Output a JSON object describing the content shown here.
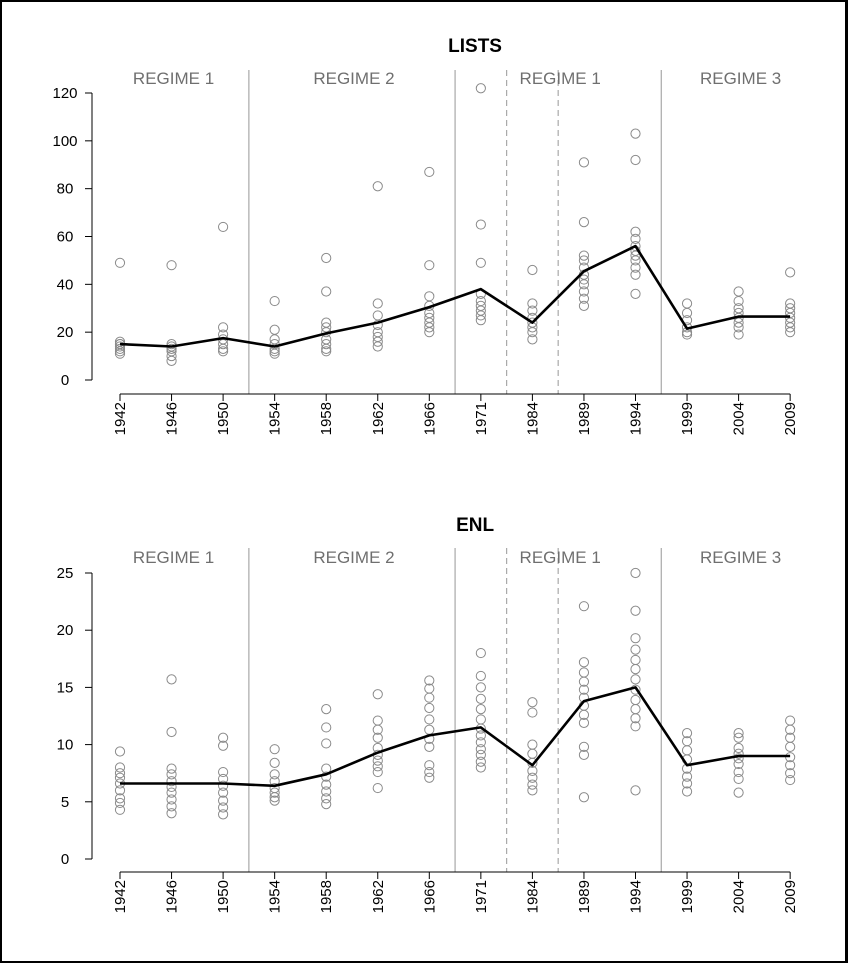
{
  "chart_data": [
    {
      "type": "scatter",
      "title": "LISTS",
      "xlabel": "",
      "ylabel": "",
      "categories": [
        "1942",
        "1946",
        "1950",
        "1954",
        "1958",
        "1962",
        "1966",
        "1971",
        "1984",
        "1989",
        "1994",
        "1999",
        "2004",
        "2009"
      ],
      "ylim": [
        0,
        120
      ],
      "yticks": [
        0,
        20,
        40,
        60,
        80,
        100,
        120
      ],
      "grid": false,
      "regimes": [
        {
          "label": "REGIME 1",
          "from": "1942",
          "to": "1950"
        },
        {
          "label": "REGIME 2",
          "from": "1954",
          "to": "1966"
        },
        {
          "label": "REGIME 1",
          "from": "1971",
          "to": "1994"
        },
        {
          "label": "REGIME 3",
          "from": "1999",
          "to": "2009"
        }
      ],
      "solid_dividers_after": [
        "1950",
        "1966",
        "1994"
      ],
      "dashed_dividers_after": [
        "1971",
        "1984"
      ],
      "points": [
        [
          11,
          12,
          13,
          14,
          15,
          15,
          16,
          49
        ],
        [
          8,
          10,
          12,
          13,
          14,
          15,
          48
        ],
        [
          12,
          13,
          15,
          17,
          19,
          22,
          64
        ],
        [
          11,
          12,
          13,
          15,
          17,
          21,
          33
        ],
        [
          12,
          13,
          15,
          17,
          20,
          22,
          24,
          37,
          51
        ],
        [
          14,
          16,
          18,
          20,
          23,
          27,
          32,
          81
        ],
        [
          20,
          22,
          24,
          26,
          28,
          31,
          35,
          48,
          87
        ],
        [
          25,
          27,
          29,
          31,
          33,
          36,
          49,
          65,
          122
        ],
        [
          17,
          20,
          22,
          24,
          26,
          29,
          32,
          46
        ],
        [
          31,
          34,
          37,
          40,
          42,
          44,
          47,
          50,
          52,
          66,
          91
        ],
        [
          36,
          44,
          47,
          50,
          52,
          54,
          56,
          59,
          62,
          92,
          103
        ],
        [
          19,
          20,
          22,
          25,
          28,
          32
        ],
        [
          19,
          22,
          24,
          26,
          28,
          30,
          33,
          37
        ],
        [
          20,
          22,
          24,
          26,
          28,
          30,
          32,
          45
        ]
      ],
      "mean_line": [
        15,
        14,
        17.5,
        14,
        19.5,
        24,
        30.5,
        38,
        24,
        45.5,
        56,
        21.5,
        26.5,
        26.5
      ]
    },
    {
      "type": "scatter",
      "title": "ENL",
      "xlabel": "",
      "ylabel": "",
      "categories": [
        "1942",
        "1946",
        "1950",
        "1954",
        "1958",
        "1962",
        "1966",
        "1971",
        "1984",
        "1989",
        "1994",
        "1999",
        "2004",
        "2009"
      ],
      "ylim": [
        0,
        25
      ],
      "yticks": [
        0,
        5,
        10,
        15,
        20,
        25
      ],
      "grid": false,
      "regimes": [
        {
          "label": "REGIME 1",
          "from": "1942",
          "to": "1950"
        },
        {
          "label": "REGIME 2",
          "from": "1954",
          "to": "1966"
        },
        {
          "label": "REGIME 1",
          "from": "1971",
          "to": "1994"
        },
        {
          "label": "REGIME 3",
          "from": "1999",
          "to": "2009"
        }
      ],
      "solid_dividers_after": [
        "1950",
        "1966",
        "1994"
      ],
      "dashed_dividers_after": [
        "1971",
        "1984"
      ],
      "points": [
        [
          4.3,
          4.9,
          5.3,
          6.0,
          6.6,
          7.1,
          7.5,
          8.0,
          9.4
        ],
        [
          4.0,
          4.6,
          5.2,
          5.8,
          6.3,
          6.8,
          7.4,
          7.9,
          11.1,
          15.7
        ],
        [
          3.9,
          4.5,
          5.1,
          5.8,
          6.4,
          7.0,
          7.6,
          9.9,
          10.6
        ],
        [
          5.1,
          5.4,
          5.8,
          6.2,
          6.8,
          7.4,
          8.4,
          9.6
        ],
        [
          4.8,
          5.3,
          5.9,
          6.5,
          7.2,
          7.9,
          10.1,
          11.5,
          13.1
        ],
        [
          6.2,
          7.6,
          8.1,
          8.6,
          9.1,
          9.7,
          10.6,
          11.3,
          12.1,
          14.4
        ],
        [
          7.1,
          7.6,
          8.2,
          9.8,
          10.5,
          11.3,
          12.2,
          13.2,
          14.1,
          14.9,
          15.6
        ],
        [
          8.0,
          8.5,
          9.1,
          9.6,
          10.2,
          10.8,
          11.4,
          12.2,
          13.1,
          14.0,
          15.0,
          16.0,
          18.0
        ],
        [
          6.0,
          6.5,
          7.1,
          7.7,
          8.4,
          9.2,
          10.0,
          12.8,
          13.7
        ],
        [
          5.4,
          9.1,
          9.8,
          11.9,
          12.6,
          13.4,
          14.1,
          14.8,
          15.5,
          16.3,
          17.2,
          22.1
        ],
        [
          6.0,
          11.6,
          12.3,
          13.1,
          13.9,
          14.8,
          15.7,
          16.6,
          17.4,
          18.3,
          19.3,
          21.7,
          25.0
        ],
        [
          5.9,
          6.6,
          7.2,
          7.9,
          8.7,
          9.5,
          10.3,
          11.0
        ],
        [
          5.8,
          7.0,
          7.6,
          8.3,
          8.8,
          9.2,
          9.7,
          10.6,
          11.0
        ],
        [
          6.9,
          7.5,
          8.2,
          8.9,
          9.8,
          10.6,
          11.3,
          12.1
        ]
      ],
      "mean_line": [
        6.6,
        6.6,
        6.6,
        6.4,
        7.4,
        9.3,
        10.8,
        11.5,
        8.2,
        13.8,
        15.0,
        8.2,
        9.0,
        9.0
      ]
    }
  ]
}
